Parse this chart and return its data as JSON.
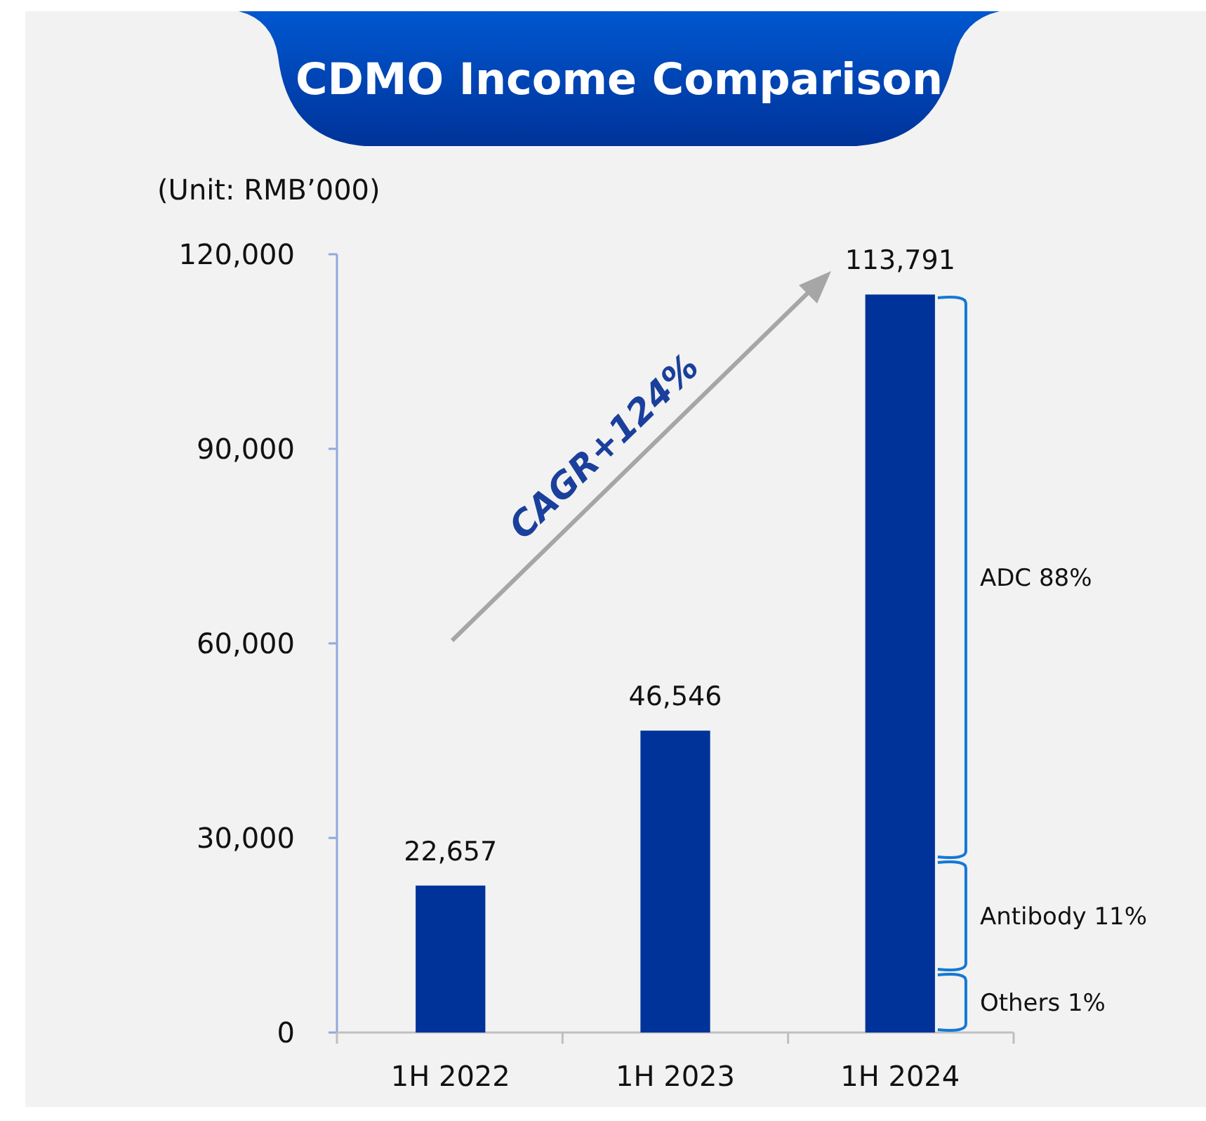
{
  "chart_data": {
    "type": "bar",
    "title": "CDMO Income Comparison",
    "ylabel": "(Unit: RMB’000)",
    "categories": [
      "1H 2022",
      "1H 2023",
      "1H 2024"
    ],
    "values": [
      22657,
      46546,
      113791
    ],
    "value_labels": [
      "22,657",
      "46,546",
      "113,791"
    ],
    "color": "#003399",
    "ylim": [
      0,
      120000
    ],
    "yticks": [
      {
        "value": 0,
        "label": "0"
      },
      {
        "value": 30000,
        "label": "30,000"
      },
      {
        "value": 60000,
        "label": "60,000"
      },
      {
        "value": 90000,
        "label": "90,000"
      },
      {
        "value": 120000,
        "label": "120,000"
      }
    ],
    "grid": false,
    "annotations": [
      "CAGR+124%",
      "Others 1%",
      "Antibody 11%",
      "ADC 88%"
    ]
  }
}
